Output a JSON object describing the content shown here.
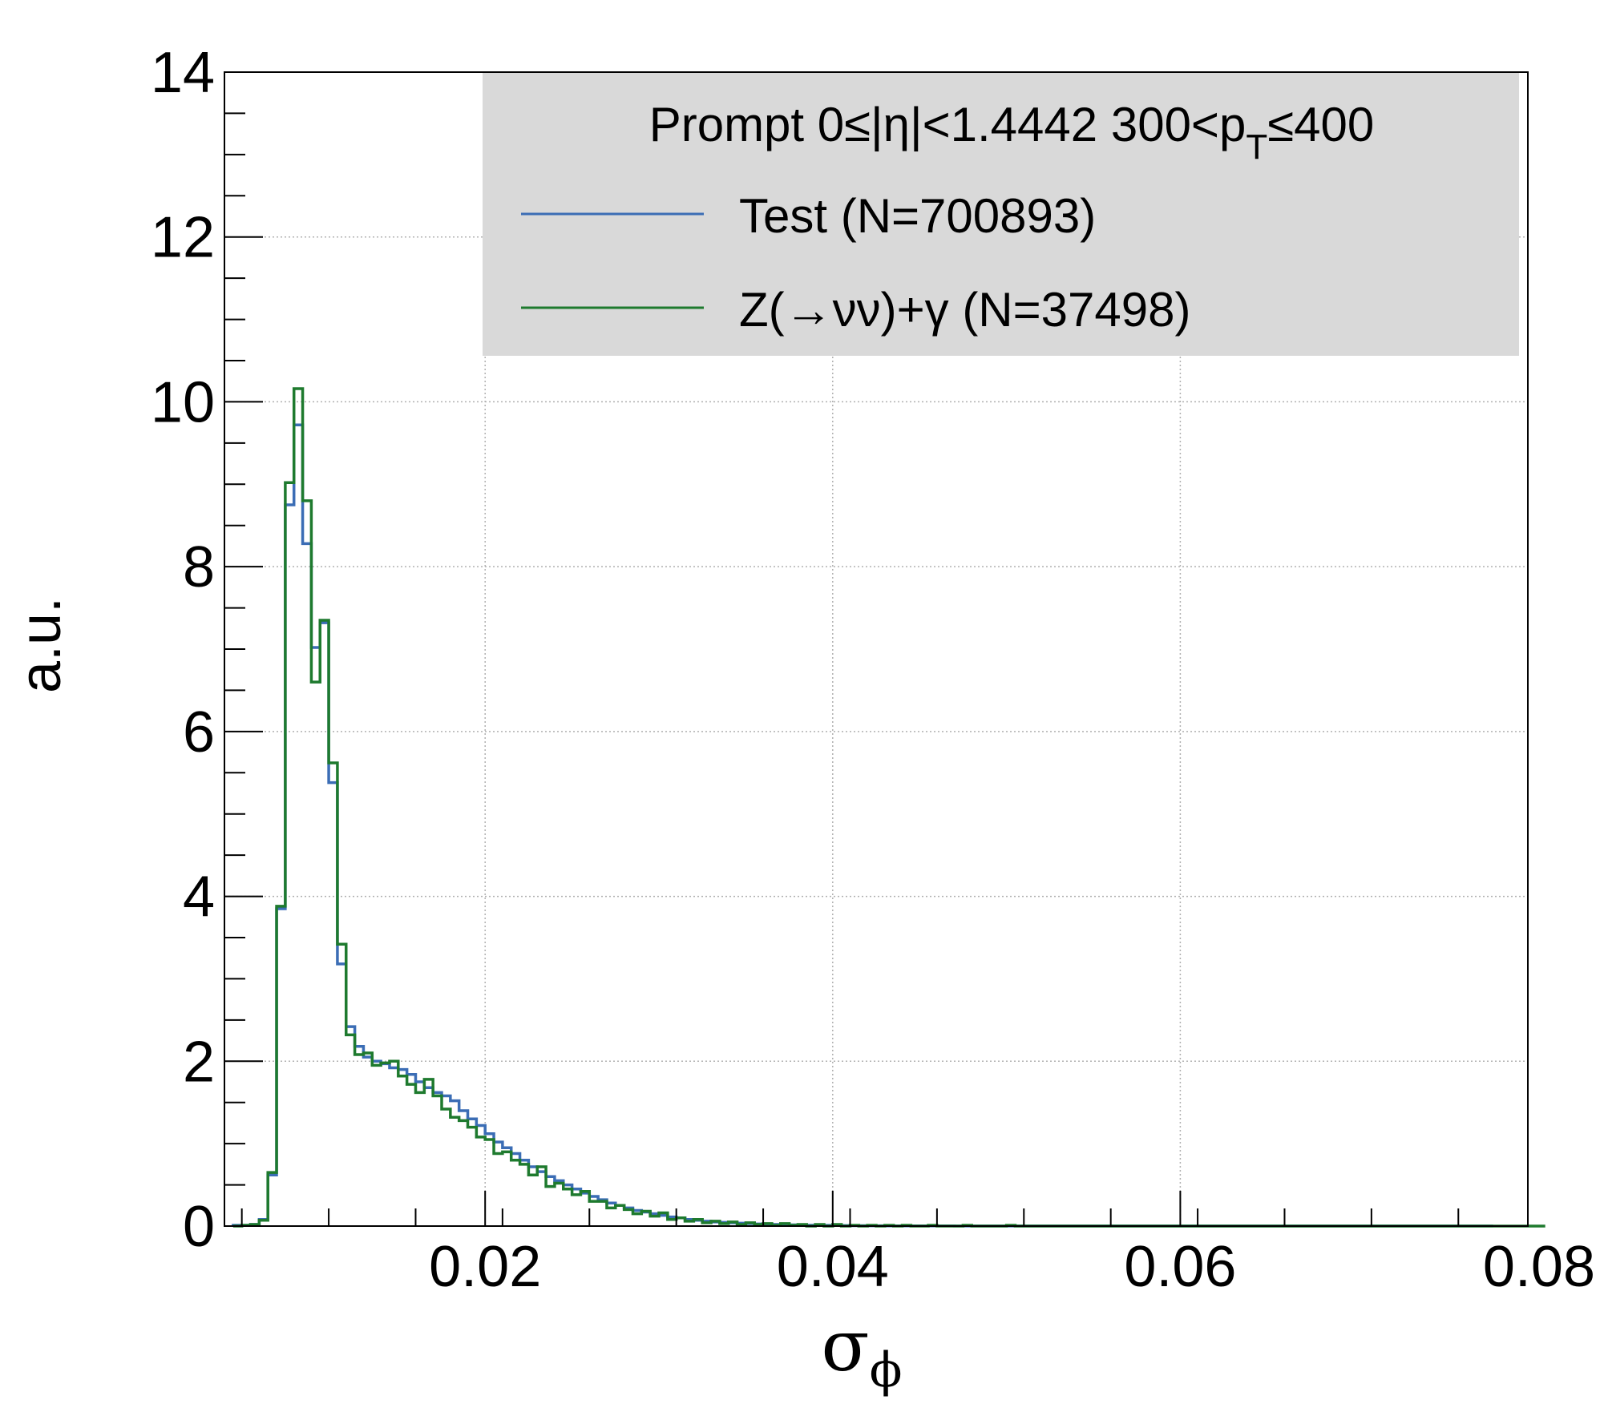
{
  "chart_data": {
    "type": "line",
    "title": "",
    "xlabel": "σ",
    "xlabel_sub": "ϕ",
    "ylabel": "a.u.",
    "xlim": [
      0.005,
      0.08
    ],
    "ylim": [
      0,
      14
    ],
    "x_ticks": [
      "0.02",
      "0.04",
      "0.06",
      "0.08"
    ],
    "x_tick_values": [
      0.02,
      0.04,
      0.06,
      0.08
    ],
    "y_ticks": [
      "0",
      "2",
      "4",
      "6",
      "8",
      "10",
      "12",
      "14"
    ],
    "y_tick_values": [
      0,
      2,
      4,
      6,
      8,
      10,
      12,
      14
    ],
    "grid": true,
    "legend_position": "top-right",
    "legend": {
      "header_prefix": "Prompt  0≤|η|<1.4442  300<p",
      "header_sub": "T",
      "header_suffix": "≤400",
      "background": "#d9d9d9"
    },
    "bin_width": 0.0005,
    "x_start": 0.0055,
    "series": [
      {
        "name": "Test (N=700893)",
        "color": "#3b6db5",
        "values": [
          0.01,
          0.01,
          0.02,
          0.08,
          0.62,
          3.85,
          8.75,
          9.72,
          8.28,
          7.02,
          7.32,
          5.38,
          3.18,
          2.42,
          2.18,
          2.05,
          2.0,
          1.97,
          1.92,
          1.9,
          1.84,
          1.75,
          1.68,
          1.62,
          1.58,
          1.52,
          1.4,
          1.3,
          1.22,
          1.12,
          1.02,
          0.95,
          0.88,
          0.8,
          0.72,
          0.66,
          0.6,
          0.55,
          0.5,
          0.45,
          0.4,
          0.36,
          0.32,
          0.28,
          0.25,
          0.22,
          0.19,
          0.17,
          0.15,
          0.13,
          0.11,
          0.1,
          0.08,
          0.07,
          0.06,
          0.05,
          0.045,
          0.04,
          0.035,
          0.03,
          0.026,
          0.022,
          0.019,
          0.016,
          0.014,
          0.012,
          0.01,
          0.009,
          0.008,
          0.007,
          0.006,
          0.005,
          0.005,
          0.004,
          0.004,
          0.003,
          0.003,
          0.003,
          0.002,
          0.002,
          0.002,
          0.002,
          0.002,
          0.001,
          0.001,
          0.001,
          0.001,
          0.001,
          0.001,
          0.001,
          0.001,
          0.001,
          0.001,
          0.001,
          0.001,
          0.001,
          0.001,
          0.001,
          0.001,
          0.001,
          0.001,
          0.001,
          0.001,
          0.001,
          0.001,
          0.001,
          0.001,
          0.001,
          0.001,
          0.001,
          0.001,
          0.001,
          0.001,
          0.001,
          0.001,
          0.001,
          0.001,
          0.001,
          0.001,
          0.001,
          0.001,
          0.001,
          0.001,
          0.001,
          0.001,
          0.001,
          0.001,
          0.001,
          0.001,
          0.001,
          0.001,
          0.001,
          0.001,
          0.001,
          0.001,
          0.001,
          0.001,
          0.001,
          0.001,
          0.001,
          0.001,
          0.001,
          0.001,
          0.001,
          0.001
        ]
      },
      {
        "name": "Z(→νν)+γ (N=37498)",
        "color": "#1e7a2e",
        "values": [
          0.0,
          0.01,
          0.02,
          0.07,
          0.65,
          3.88,
          9.02,
          10.16,
          8.8,
          6.6,
          7.35,
          5.62,
          3.42,
          2.32,
          2.08,
          2.1,
          1.95,
          1.98,
          2.0,
          1.82,
          1.72,
          1.62,
          1.78,
          1.58,
          1.42,
          1.32,
          1.28,
          1.2,
          1.08,
          1.05,
          0.88,
          0.9,
          0.8,
          0.75,
          0.62,
          0.72,
          0.48,
          0.52,
          0.45,
          0.38,
          0.42,
          0.3,
          0.3,
          0.22,
          0.25,
          0.2,
          0.15,
          0.18,
          0.12,
          0.16,
          0.08,
          0.1,
          0.06,
          0.08,
          0.04,
          0.06,
          0.03,
          0.05,
          0.02,
          0.04,
          0.02,
          0.03,
          0.01,
          0.03,
          0.01,
          0.02,
          0.0,
          0.02,
          0.0,
          0.02,
          0.0,
          0.01,
          0.0,
          0.01,
          0.0,
          0.01,
          0.0,
          0.01,
          0.0,
          0.0,
          0.01,
          0.0,
          0.0,
          0.0,
          0.01,
          0.0,
          0.0,
          0.0,
          0.0,
          0.01,
          0.0,
          0.0,
          0.0,
          0.0,
          0.0,
          0.0,
          0.0,
          0.0,
          0.0,
          0.0,
          0.0,
          0.0,
          0.0,
          0.0,
          0.0,
          0.0,
          0.0,
          0.0,
          0.0,
          0.0,
          0.0,
          0.0,
          0.0,
          0.0,
          0.0,
          0.0,
          0.0,
          0.0,
          0.0,
          0.0,
          0.0,
          0.0,
          0.0,
          0.0,
          0.0,
          0.0,
          0.0,
          0.0,
          0.0,
          0.0,
          0.0,
          0.0,
          0.0,
          0.0,
          0.0,
          0.0,
          0.0,
          0.0,
          0.0,
          0.0,
          0.0,
          0.0,
          0.0,
          0.0,
          0.0,
          0.0,
          0.0,
          0.0,
          0.0,
          0.0,
          0.0
        ]
      }
    ]
  }
}
